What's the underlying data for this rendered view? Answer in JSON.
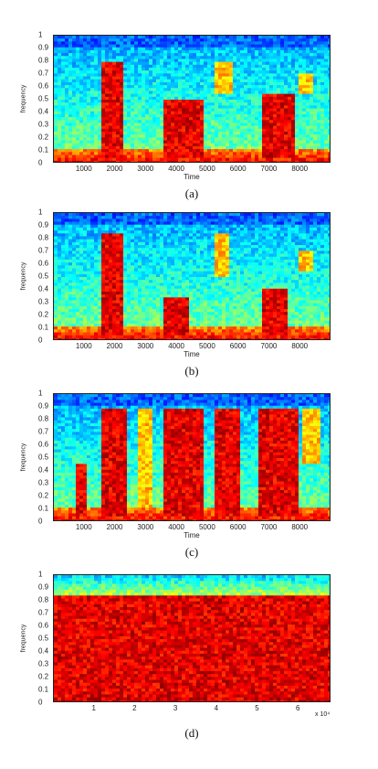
{
  "chart_data": [
    {
      "type": "heatmap",
      "panel_label": "(a)",
      "xlabel": "Time",
      "ylabel": "frequency",
      "x_ticks": [
        "1000",
        "2000",
        "3000",
        "4000",
        "5000",
        "6000",
        "7000",
        "8000"
      ],
      "y_ticks": [
        "0",
        "0.1",
        "0.2",
        "0.3",
        "0.4",
        "0.5",
        "0.6",
        "0.7",
        "0.8",
        "0.9",
        "1"
      ],
      "xlim": [
        0,
        9000
      ],
      "ylim": [
        0,
        1
      ],
      "colormap": "jet",
      "regions": [
        {
          "x": [
            1500,
            2200
          ],
          "y": [
            0.05,
            0.8
          ],
          "level": "high"
        },
        {
          "x": [
            3500,
            4900
          ],
          "y": [
            0.05,
            0.5
          ],
          "level": "high"
        },
        {
          "x": [
            5200,
            5800
          ],
          "y": [
            0.55,
            0.8
          ],
          "level": "medium"
        },
        {
          "x": [
            6700,
            7800
          ],
          "y": [
            0.05,
            0.55
          ],
          "level": "high"
        },
        {
          "x": [
            7900,
            8400
          ],
          "y": [
            0.55,
            0.7
          ],
          "level": "medium"
        }
      ]
    },
    {
      "type": "heatmap",
      "panel_label": "(b)",
      "xlabel": "Time",
      "ylabel": "frequency",
      "x_ticks": [
        "1000",
        "2000",
        "3000",
        "4000",
        "5000",
        "6000",
        "7000",
        "8000"
      ],
      "y_ticks": [
        "0",
        "0.1",
        "0.2",
        "0.3",
        "0.4",
        "0.5",
        "0.6",
        "0.7",
        "0.8",
        "0.9",
        "1"
      ],
      "xlim": [
        0,
        9000
      ],
      "ylim": [
        0,
        1
      ],
      "colormap": "jet",
      "regions": [
        {
          "x": [
            1500,
            2200
          ],
          "y": [
            0.05,
            0.85
          ],
          "level": "high"
        },
        {
          "x": [
            3500,
            4400
          ],
          "y": [
            0.05,
            0.35
          ],
          "level": "high"
        },
        {
          "x": [
            5200,
            5700
          ],
          "y": [
            0.5,
            0.85
          ],
          "level": "medium"
        },
        {
          "x": [
            6700,
            7600
          ],
          "y": [
            0.05,
            0.4
          ],
          "level": "high"
        },
        {
          "x": [
            7900,
            8400
          ],
          "y": [
            0.55,
            0.7
          ],
          "level": "medium"
        }
      ]
    },
    {
      "type": "heatmap",
      "panel_label": "(c)",
      "xlabel": "Time",
      "ylabel": "frequency",
      "x_ticks": [
        "1000",
        "2000",
        "3000",
        "4000",
        "5000",
        "6000",
        "7000",
        "8000"
      ],
      "y_ticks": [
        "0",
        "0.1",
        "0.2",
        "0.3",
        "0.4",
        "0.5",
        "0.6",
        "0.7",
        "0.8",
        "0.9",
        "1"
      ],
      "xlim": [
        0,
        9000
      ],
      "ylim": [
        0,
        1
      ],
      "colormap": "jet",
      "regions": [
        {
          "x": [
            700,
            1100
          ],
          "y": [
            0.05,
            0.45
          ],
          "level": "high"
        },
        {
          "x": [
            1500,
            2400
          ],
          "y": [
            0.05,
            0.88
          ],
          "level": "high"
        },
        {
          "x": [
            2700,
            3200
          ],
          "y": [
            0.05,
            0.88
          ],
          "level": "medium"
        },
        {
          "x": [
            3500,
            4900
          ],
          "y": [
            0.05,
            0.88
          ],
          "level": "high"
        },
        {
          "x": [
            5200,
            6000
          ],
          "y": [
            0.05,
            0.88
          ],
          "level": "high"
        },
        {
          "x": [
            6600,
            7900
          ],
          "y": [
            0.05,
            0.88
          ],
          "level": "high"
        },
        {
          "x": [
            8100,
            8700
          ],
          "y": [
            0.45,
            0.88
          ],
          "level": "medium"
        }
      ]
    },
    {
      "type": "heatmap",
      "panel_label": "(d)",
      "xlabel": "",
      "ylabel": "frequency",
      "x_ticks": [
        "1",
        "2",
        "3",
        "4",
        "5",
        "6"
      ],
      "y_ticks": [
        "0",
        "0.1",
        "0.2",
        "0.3",
        "0.4",
        "0.5",
        "0.6",
        "0.7",
        "0.8",
        "0.9",
        "1"
      ],
      "x_multiplier": "x 10⁴",
      "xlim": [
        0,
        68000
      ],
      "ylim": [
        0,
        1
      ],
      "colormap": "jet",
      "regions": [
        {
          "x": [
            0,
            68000
          ],
          "y": [
            0,
            0.85
          ],
          "level": "high"
        }
      ]
    }
  ]
}
